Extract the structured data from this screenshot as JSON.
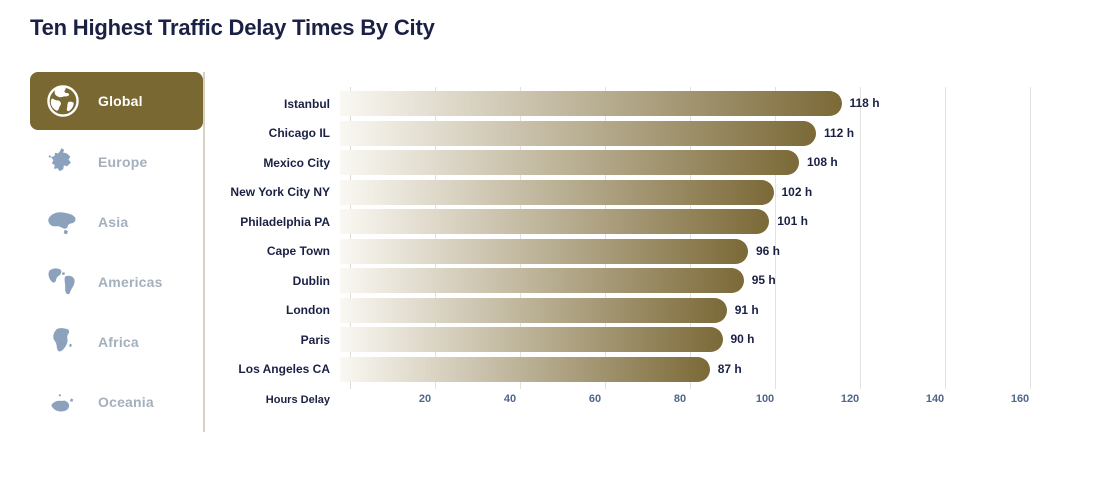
{
  "title": "Ten Highest Traffic Delay Times By City",
  "colors": {
    "accent_gold": "#7A6833",
    "bar_gradient_start": "#FAF8F3",
    "bar_gradient_end": "#7B6937",
    "text_navy": "#1B2144",
    "tick_blue": "#50678A",
    "inactive_slate": "#8CA2BC",
    "divider_tan": "#D9D2C2"
  },
  "sidebar": {
    "items": [
      {
        "label": "Global",
        "icon": "globe-icon",
        "active": true
      },
      {
        "label": "Europe",
        "icon": "europe-map-icon",
        "active": false
      },
      {
        "label": "Asia",
        "icon": "asia-map-icon",
        "active": false
      },
      {
        "label": "Americas",
        "icon": "americas-map-icon",
        "active": false
      },
      {
        "label": "Africa",
        "icon": "africa-map-icon",
        "active": false
      },
      {
        "label": "Oceania",
        "icon": "oceania-map-icon",
        "active": false
      }
    ]
  },
  "chart_data": {
    "type": "bar",
    "orientation": "horizontal",
    "title": "Ten Highest Traffic Delay Times By City",
    "categories": [
      "Istanbul",
      "Chicago IL",
      "Mexico City",
      "New York City NY",
      "Philadelphia PA",
      "Cape Town",
      "Dublin",
      "London",
      "Paris",
      "Los Angeles CA"
    ],
    "values": [
      118,
      112,
      108,
      102,
      101,
      96,
      95,
      91,
      90,
      87
    ],
    "value_labels": [
      "118 h",
      "112 h",
      "108 h",
      "102 h",
      "101 h",
      "96 h",
      "95 h",
      "91 h",
      "90 h",
      "87 h"
    ],
    "value_suffix": "h",
    "xlabel": "Hours Delay",
    "ylabel": "",
    "xlim": [
      0,
      160
    ],
    "xticks": [
      20,
      40,
      60,
      80,
      100,
      120,
      140,
      160
    ],
    "grid": true,
    "legend": "none",
    "bar_gradient": [
      "#FAF8F3",
      "#7B6937"
    ]
  }
}
